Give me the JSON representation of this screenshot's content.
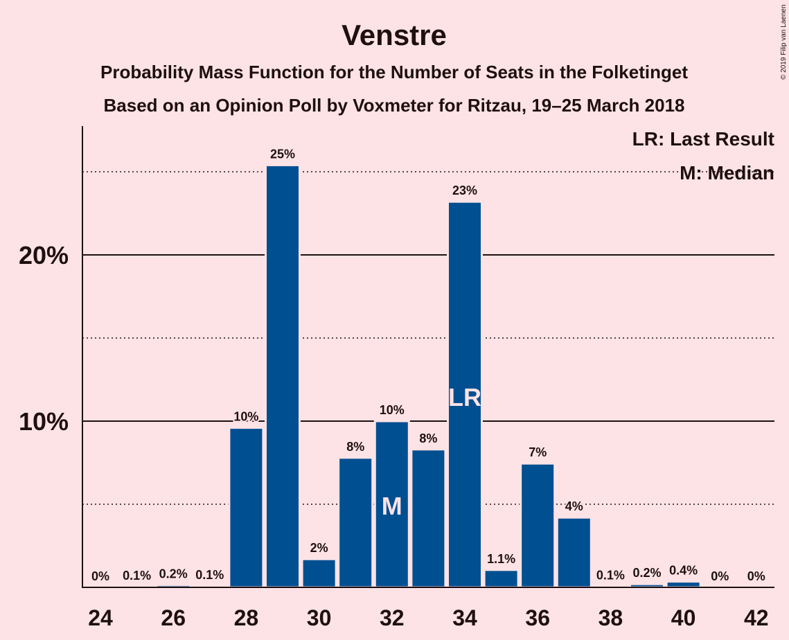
{
  "chart_data": {
    "type": "bar",
    "title": "Venstre",
    "subtitle_line1": "Probability Mass Function for the Number of Seats in the Folketinget",
    "subtitle_line2": "Based on an Opinion Poll by Voxmeter for Ritzau, 19–25 March 2018",
    "credit": "© 2019 Filip van Laenen",
    "x": [
      24,
      25,
      26,
      27,
      28,
      29,
      30,
      31,
      32,
      33,
      34,
      35,
      36,
      37,
      38,
      39,
      40,
      41,
      42
    ],
    "values": [
      0,
      0.05,
      0.15,
      0.08,
      9.6,
      25.4,
      1.7,
      7.8,
      10.0,
      8.3,
      23.2,
      1.05,
      7.45,
      4.2,
      0.06,
      0.2,
      0.35,
      0,
      0
    ],
    "labels": [
      "0%",
      "0.1%",
      "0.2%",
      "0.1%",
      "10%",
      "25%",
      "2%",
      "8%",
      "10%",
      "8%",
      "23%",
      "1.1%",
      "7%",
      "4%",
      "0.1%",
      "0.2%",
      "0.4%",
      "0%",
      "0%"
    ],
    "xticks": [
      "24",
      "26",
      "28",
      "30",
      "32",
      "34",
      "36",
      "38",
      "40",
      "42"
    ],
    "yticks": [
      {
        "value": 10,
        "label": "10%"
      },
      {
        "value": 20,
        "label": "20%"
      }
    ],
    "dotted_gridlines": [
      5,
      15,
      25
    ],
    "ylim": [
      0,
      27.5
    ],
    "median_seat": 32,
    "median_marker": "M",
    "last_result_seat": 34,
    "last_result_marker": "LR",
    "legend": {
      "lr": "LR: Last Result",
      "m": "M: Median",
      "position": "top-right"
    },
    "bar_color": "#004f91",
    "background": "#fde3e6",
    "text_color": "#1e0f10"
  }
}
